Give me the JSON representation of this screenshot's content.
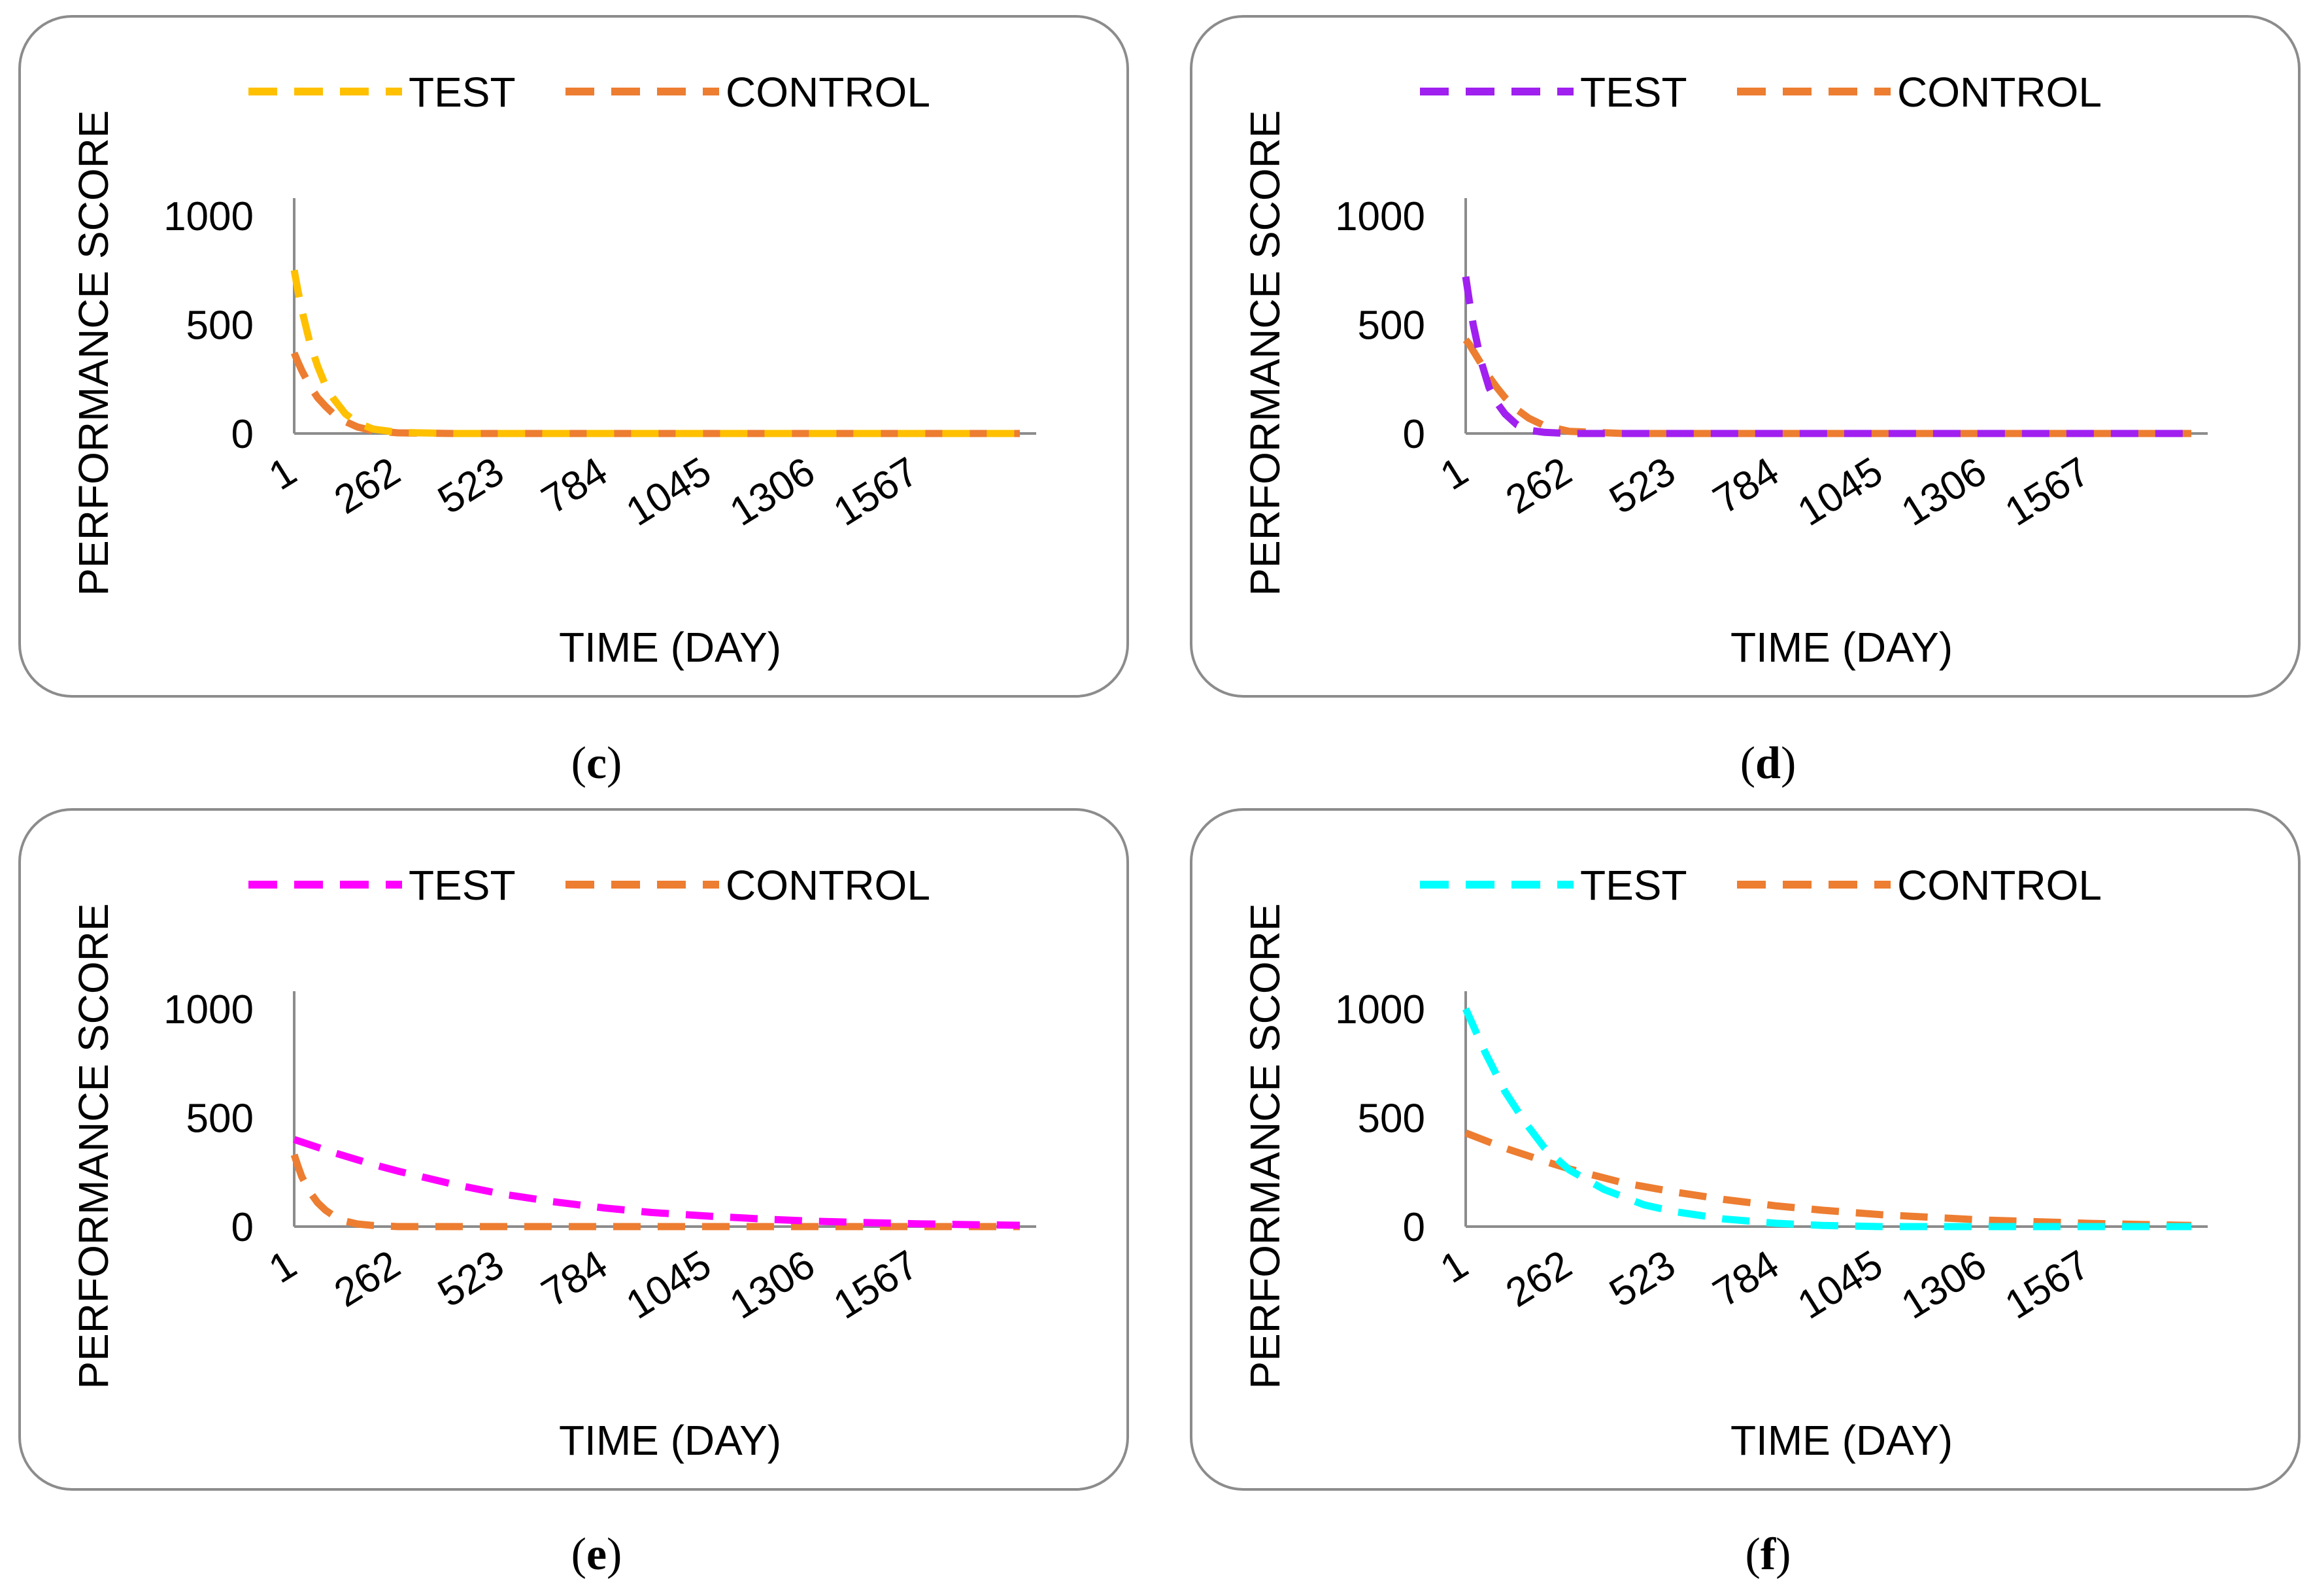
{
  "chart_data": [
    {
      "id": "c",
      "type": "line",
      "caption_letter": "c",
      "xlabel": "TIME (DAY)",
      "ylabel": "PERFORMANCE SCORE",
      "x_ticks": [
        "1",
        "262",
        "523",
        "784",
        "1045",
        "1306",
        "1567"
      ],
      "y_ticks": [
        "0",
        "500",
        "1000"
      ],
      "xlim": [
        1,
        1828
      ],
      "ylim": [
        0,
        1000
      ],
      "legend": "top",
      "series": [
        {
          "name": "TEST",
          "color": "#FFC000",
          "x": [
            1,
            10,
            20,
            40,
            60,
            80,
            100,
            130,
            160,
            200,
            262,
            400,
            523,
            784,
            1045,
            1306,
            1567,
            1828
          ],
          "values": [
            750,
            660,
            570,
            420,
            310,
            220,
            160,
            90,
            50,
            20,
            5,
            0,
            0,
            0,
            0,
            0,
            0,
            0
          ]
        },
        {
          "name": "CONTROL",
          "color": "#ED7D31",
          "x": [
            1,
            10,
            20,
            40,
            60,
            80,
            100,
            130,
            160,
            200,
            262,
            400,
            523,
            784,
            1045,
            1306,
            1567,
            1828
          ],
          "values": [
            370,
            330,
            290,
            220,
            165,
            125,
            90,
            55,
            30,
            12,
            3,
            0,
            0,
            0,
            0,
            0,
            0,
            0
          ]
        }
      ]
    },
    {
      "id": "d",
      "type": "line",
      "caption_letter": "d",
      "xlabel": "TIME (DAY)",
      "ylabel": "PERFORMANCE SCORE",
      "x_ticks": [
        "1",
        "262",
        "523",
        "784",
        "1045",
        "1306",
        "1567"
      ],
      "y_ticks": [
        "0",
        "500",
        "1000"
      ],
      "xlim": [
        1,
        1828
      ],
      "ylim": [
        0,
        1000
      ],
      "legend": "top",
      "series": [
        {
          "name": "TEST",
          "color": "#A020F0",
          "x": [
            1,
            10,
            20,
            40,
            60,
            80,
            100,
            130,
            160,
            200,
            262,
            400,
            523,
            784,
            1045,
            1306,
            1567,
            1828
          ],
          "values": [
            720,
            610,
            500,
            330,
            210,
            140,
            90,
            40,
            15,
            5,
            0,
            0,
            0,
            0,
            0,
            0,
            0,
            0
          ]
        },
        {
          "name": "CONTROL",
          "color": "#ED7D31",
          "x": [
            1,
            10,
            20,
            40,
            60,
            80,
            100,
            130,
            160,
            200,
            262,
            400,
            523,
            784,
            1045,
            1306,
            1567,
            1828
          ],
          "values": [
            430,
            410,
            380,
            320,
            260,
            210,
            165,
            110,
            70,
            35,
            10,
            0,
            0,
            0,
            0,
            0,
            0,
            0
          ]
        }
      ]
    },
    {
      "id": "e",
      "type": "line",
      "caption_letter": "e",
      "xlabel": "TIME (DAY)",
      "ylabel": "PERFORMANCE SCORE",
      "x_ticks": [
        "1",
        "262",
        "523",
        "784",
        "1045",
        "1306",
        "1567"
      ],
      "y_ticks": [
        "0",
        "500",
        "1000"
      ],
      "xlim": [
        1,
        1828
      ],
      "ylim": [
        0,
        1000
      ],
      "legend": "top",
      "series": [
        {
          "name": "TEST",
          "color": "#FF00FF",
          "x": [
            1,
            100,
            200,
            262,
            400,
            523,
            650,
            784,
            900,
            1045,
            1200,
            1306,
            1450,
            1567,
            1700,
            1828
          ],
          "values": [
            400,
            340,
            285,
            255,
            195,
            150,
            115,
            85,
            65,
            48,
            33,
            25,
            18,
            13,
            9,
            6
          ]
        },
        {
          "name": "CONTROL",
          "color": "#ED7D31",
          "x": [
            1,
            10,
            20,
            40,
            60,
            80,
            100,
            130,
            160,
            200,
            262,
            400,
            523,
            784,
            1045,
            1306,
            1567,
            1828
          ],
          "values": [
            330,
            280,
            230,
            160,
            110,
            75,
            50,
            25,
            12,
            5,
            0,
            0,
            0,
            0,
            0,
            0,
            0,
            0
          ]
        }
      ]
    },
    {
      "id": "f",
      "type": "line",
      "caption_letter": "f",
      "xlabel": "TIME (DAY)",
      "ylabel": "PERFORMANCE SCORE",
      "x_ticks": [
        "1",
        "262",
        "523",
        "784",
        "1045",
        "1306",
        "1567"
      ],
      "y_ticks": [
        "0",
        "500",
        "1000"
      ],
      "xlim": [
        1,
        1828
      ],
      "ylim": [
        0,
        1000
      ],
      "legend": "top",
      "series": [
        {
          "name": "TEST",
          "color": "#00FFFF",
          "x": [
            1,
            50,
            100,
            150,
            200,
            262,
            350,
            450,
            523,
            650,
            784,
            900,
            1045,
            1306,
            1567,
            1828
          ],
          "values": [
            1000,
            800,
            620,
            480,
            360,
            260,
            170,
            100,
            70,
            35,
            15,
            5,
            0,
            0,
            0,
            0
          ]
        },
        {
          "name": "CONTROL",
          "color": "#ED7D31",
          "x": [
            1,
            100,
            200,
            262,
            400,
            523,
            650,
            784,
            900,
            1045,
            1200,
            1306,
            1450,
            1567,
            1700,
            1828
          ],
          "values": [
            430,
            360,
            300,
            265,
            200,
            160,
            125,
            95,
            75,
            55,
            40,
            30,
            22,
            15,
            10,
            5
          ]
        }
      ]
    }
  ]
}
